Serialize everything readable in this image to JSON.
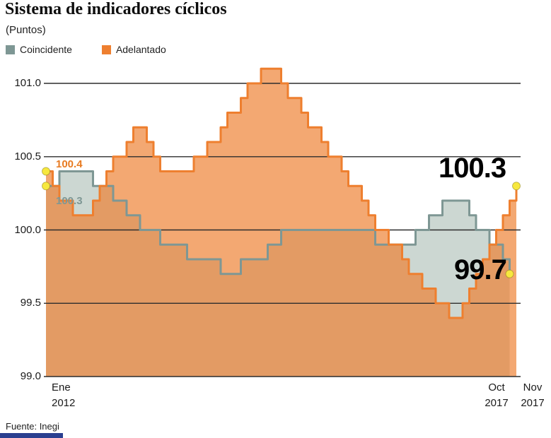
{
  "title": "Sistema de indicadores cíclicos",
  "subtitle": "(Puntos)",
  "source": "Fuente: Inegi",
  "legend": [
    {
      "label": "Coincidente",
      "color": "#7e9794"
    },
    {
      "label": "Adelantado",
      "color": "#ee7f2f"
    }
  ],
  "colors": {
    "marker": "#f7e83e",
    "gridline": "#2d2d2d",
    "footer_bar": "#2a3f90"
  },
  "y_axis": {
    "ticks": [
      {
        "label": "101.0",
        "value": 101.0
      },
      {
        "label": "100.5",
        "value": 100.5
      },
      {
        "label": "100.0",
        "value": 100.0
      },
      {
        "label": "99.5",
        "value": 99.5
      },
      {
        "label": "99.0",
        "value": 99.0
      }
    ]
  },
  "x_axis": {
    "labels": [
      {
        "line1": "Ene",
        "line2": "2012"
      },
      {
        "line1": "Oct",
        "line2": "2017"
      },
      {
        "line1": "Nov",
        "line2": "2017"
      }
    ]
  },
  "annotations": {
    "start_high": {
      "text": "100.4",
      "color": "#e87b22"
    },
    "start_low": {
      "text": "100.3",
      "color": "#7e9794"
    },
    "end_high": {
      "text": "100.3",
      "color": "#000000"
    },
    "end_low": {
      "text": "99.7",
      "color": "#000000"
    }
  },
  "chart_data": {
    "type": "area",
    "title": "Sistema de indicadores cíclicos",
    "ylabel": "Puntos",
    "ylim": [
      99.0,
      101.15
    ],
    "x_range": [
      "Ene 2012",
      "Nov 2017"
    ],
    "x_frequency": "monthly",
    "step": true,
    "grid": true,
    "legend_position": "top-left",
    "series": [
      {
        "name": "Coincidente",
        "color": "#7e9794",
        "fill": "#ccd7d2",
        "start_label": "100.3",
        "end_label": "99.7",
        "values": [
          100.3,
          100.3,
          100.4,
          100.4,
          100.4,
          100.4,
          100.4,
          100.3,
          100.3,
          100.3,
          100.2,
          100.2,
          100.1,
          100.1,
          100.0,
          100.0,
          100.0,
          99.9,
          99.9,
          99.9,
          99.9,
          99.8,
          99.8,
          99.8,
          99.8,
          99.8,
          99.7,
          99.7,
          99.7,
          99.8,
          99.8,
          99.8,
          99.8,
          99.9,
          99.9,
          100.0,
          100.0,
          100.0,
          100.0,
          100.0,
          100.0,
          100.0,
          100.0,
          100.0,
          100.0,
          100.0,
          100.0,
          100.0,
          100.0,
          99.9,
          99.9,
          99.9,
          99.9,
          99.9,
          99.9,
          100.0,
          100.0,
          100.1,
          100.1,
          100.2,
          100.2,
          100.2,
          100.2,
          100.1,
          100.0,
          100.0,
          99.9,
          99.9,
          99.8,
          99.7
        ]
      },
      {
        "name": "Adelantado",
        "color": "#ee7f2f",
        "fill": "rgba(238,127,47,0.68)",
        "start_label": "100.4",
        "end_label": "100.3",
        "values": [
          100.4,
          100.3,
          100.2,
          100.2,
          100.1,
          100.1,
          100.1,
          100.2,
          100.3,
          100.4,
          100.5,
          100.5,
          100.6,
          100.7,
          100.7,
          100.6,
          100.5,
          100.4,
          100.4,
          100.4,
          100.4,
          100.4,
          100.5,
          100.5,
          100.6,
          100.6,
          100.7,
          100.8,
          100.8,
          100.9,
          101.0,
          101.0,
          101.1,
          101.1,
          101.1,
          101.0,
          100.9,
          100.9,
          100.8,
          100.7,
          100.7,
          100.6,
          100.5,
          100.5,
          100.4,
          100.3,
          100.3,
          100.2,
          100.1,
          100.0,
          100.0,
          99.9,
          99.9,
          99.8,
          99.7,
          99.7,
          99.6,
          99.6,
          99.5,
          99.5,
          99.4,
          99.4,
          99.5,
          99.6,
          99.7,
          99.8,
          99.9,
          100.0,
          100.1,
          100.2,
          100.3
        ]
      }
    ]
  }
}
